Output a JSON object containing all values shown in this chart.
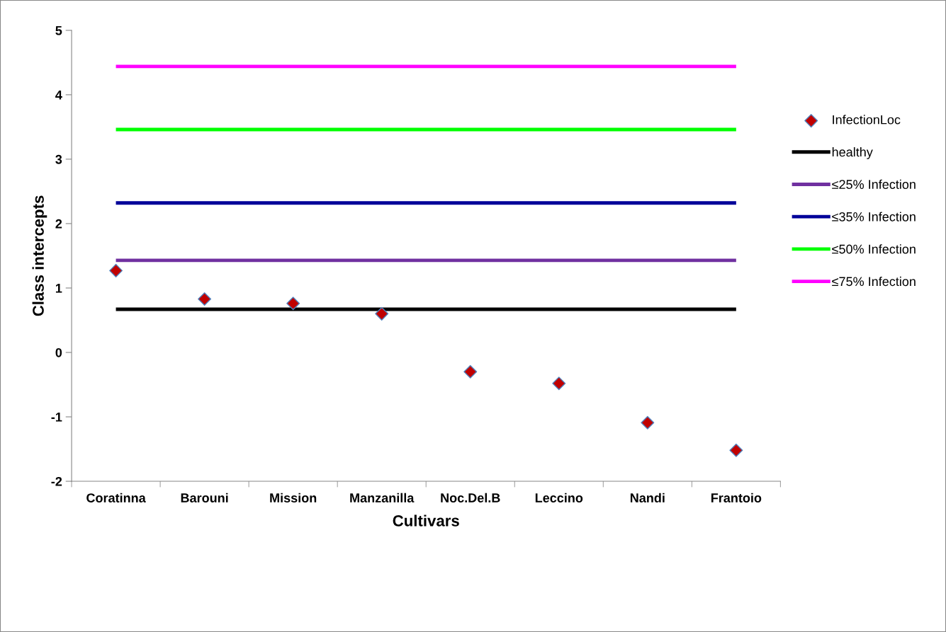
{
  "chart_data": {
    "type": "scatter",
    "xlabel": "Cultivars",
    "ylabel": "Class intercepts",
    "categories": [
      "Coratinna",
      "Barouni",
      "Mission",
      "Manzanilla",
      "Noc.Del.B",
      "Leccino",
      "Nandi",
      "Frantoio"
    ],
    "series": [
      {
        "name": "InfectionLoc",
        "marker": "diamond",
        "color": "#c00000",
        "values": [
          1.27,
          0.83,
          0.76,
          0.6,
          -0.3,
          -0.48,
          -1.09,
          -1.52
        ]
      },
      {
        "name": "healthy",
        "type": "line",
        "marker": "none",
        "color": "#000000",
        "values": [
          0.67,
          0.67,
          0.67,
          0.67,
          0.67,
          0.67,
          0.67,
          0.67
        ]
      },
      {
        "name": "≤25% Infection",
        "type": "line",
        "marker": "none",
        "color": "#7030a0",
        "values": [
          1.43,
          1.43,
          1.43,
          1.43,
          1.43,
          1.43,
          1.43,
          1.43
        ]
      },
      {
        "name": "≤35% Infection",
        "type": "line",
        "marker": "none",
        "color": "#000099",
        "values": [
          2.32,
          2.32,
          2.32,
          2.32,
          2.32,
          2.32,
          2.32,
          2.32
        ]
      },
      {
        "name": "≤50% Infection",
        "type": "line",
        "marker": "none",
        "color": "#00ff00",
        "values": [
          3.46,
          3.46,
          3.46,
          3.46,
          3.46,
          3.46,
          3.46,
          3.46
        ]
      },
      {
        "name": "≤75% Infection",
        "type": "line",
        "marker": "none",
        "color": "#ff00ff",
        "values": [
          4.44,
          4.44,
          4.44,
          4.44,
          4.44,
          4.44,
          4.44,
          4.44
        ]
      }
    ],
    "ylim": [
      -2,
      5
    ],
    "yticks": [
      -2,
      -1,
      0,
      1,
      2,
      3,
      4,
      5
    ],
    "grid": false,
    "legend": "right"
  }
}
